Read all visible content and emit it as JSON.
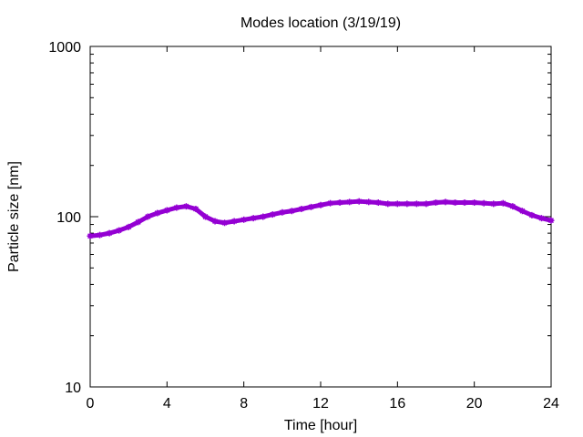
{
  "chart_data": {
    "type": "line",
    "title": "Modes location (3/19/19)",
    "xlabel": "Time [hour]",
    "ylabel": "Particle size [nm]",
    "xlim": [
      0,
      24
    ],
    "ylim": [
      10,
      1000
    ],
    "yscale": "log",
    "grid": false,
    "legend": "none",
    "x_ticks": [
      0,
      4,
      8,
      12,
      16,
      20,
      24
    ],
    "x_tick_labels": [
      "0",
      "4",
      "8",
      "12",
      "16",
      "20",
      "24"
    ],
    "y_ticks": [
      10,
      100,
      1000
    ],
    "y_tick_labels": [
      "10",
      "100",
      "1000"
    ],
    "series": [
      {
        "color": "#9400d3",
        "marker": "star",
        "x": [
          0,
          0.5,
          1,
          1.5,
          2,
          2.5,
          3,
          3.5,
          4,
          4.5,
          5,
          5.5,
          6,
          6.5,
          7,
          7.5,
          8,
          8.5,
          9,
          9.5,
          10,
          10.5,
          11,
          11.5,
          12,
          12.5,
          13,
          13.5,
          14,
          14.5,
          15,
          15.5,
          16,
          16.5,
          17,
          17.5,
          18,
          18.5,
          19,
          19.5,
          20,
          20.5,
          21,
          21.5,
          22,
          22.5,
          23,
          23.5,
          24
        ],
        "y": [
          77,
          78,
          80,
          83,
          87,
          93,
          100,
          105,
          109,
          113,
          115,
          111,
          100,
          94,
          92,
          94,
          96,
          98,
          100,
          103,
          106,
          108,
          111,
          114,
          117,
          120,
          121,
          122,
          123,
          122,
          121,
          119,
          119,
          119,
          119,
          119,
          121,
          122,
          121,
          121,
          121,
          120,
          119,
          120,
          115,
          108,
          102,
          98,
          95
        ]
      }
    ]
  }
}
